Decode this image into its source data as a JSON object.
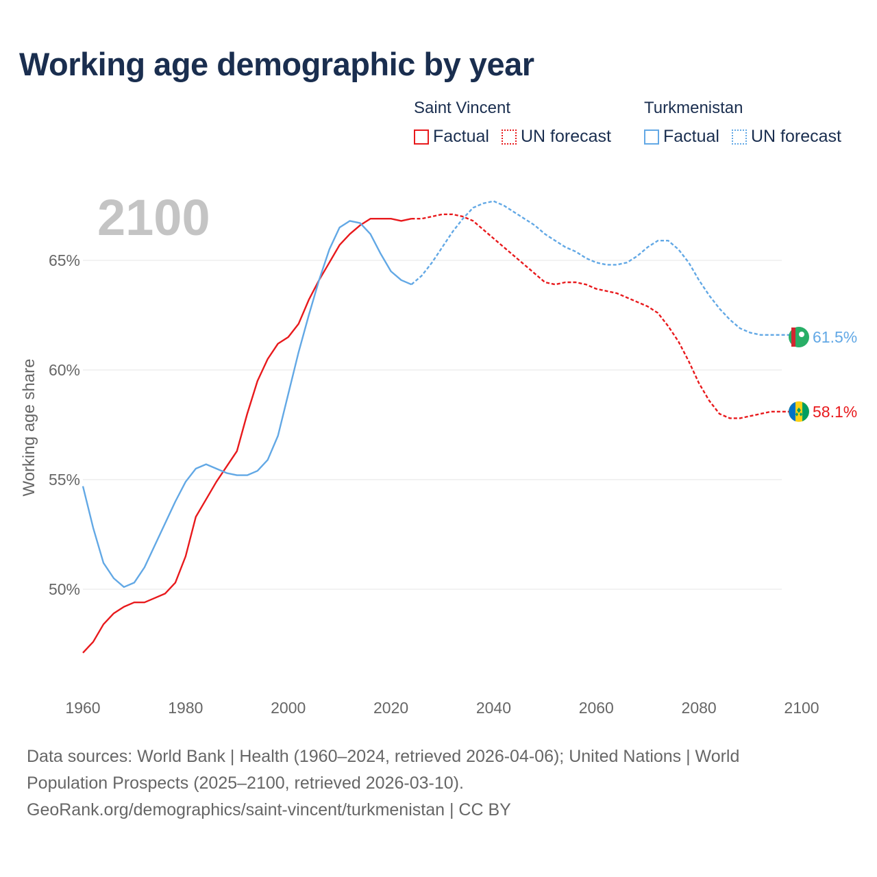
{
  "title": "Working age demographic by year",
  "legend": {
    "groups": [
      {
        "name": "Saint Vincent",
        "color": "#e8191c",
        "factual_label": "Factual",
        "forecast_label": "UN forecast"
      },
      {
        "name": "Turkmenistan",
        "color": "#62a8e5",
        "factual_label": "Factual",
        "forecast_label": "UN forecast"
      }
    ]
  },
  "footer": {
    "line1": "Data sources: World Bank | Health (1960–2024, retrieved 2026-04-06); United Nations | World",
    "line2": "Population Prospects (2025–2100, retrieved 2026-03-10).",
    "line3": "GeoRank.org/demographics/saint-vincent/turkmenistan | CC BY"
  },
  "colors": {
    "grid": "#e6e6e6",
    "tick": "#666666",
    "year_watermark": "#c4c4c4"
  },
  "chart_data": {
    "type": "line",
    "year_label": "2100",
    "ylabel": "Working age share",
    "xlim": [
      1960,
      2100
    ],
    "ylim": [
      45.5,
      68.5
    ],
    "xticks": [
      1960,
      1980,
      2000,
      2020,
      2040,
      2060,
      2080,
      2100
    ],
    "xtick_labels": [
      "1960",
      "1980",
      "2000",
      "2020",
      "2040",
      "2060",
      "2080",
      "2100"
    ],
    "yticks": [
      50,
      55,
      60,
      65
    ],
    "ytick_labels": [
      "50%",
      "55%",
      "60%",
      "65%"
    ],
    "forecast_start": 2024,
    "series": [
      {
        "name": "Saint Vincent",
        "color": "#e8191c",
        "end_label": "58.1%",
        "flag_icon": "saint-vincent-flag-icon",
        "x": [
          1960,
          1962,
          1964,
          1966,
          1968,
          1970,
          1972,
          1974,
          1976,
          1978,
          1980,
          1982,
          1984,
          1986,
          1988,
          1990,
          1992,
          1994,
          1996,
          1998,
          2000,
          2002,
          2004,
          2006,
          2008,
          2010,
          2012,
          2014,
          2016,
          2018,
          2020,
          2022,
          2024,
          2026,
          2028,
          2030,
          2032,
          2034,
          2036,
          2038,
          2040,
          2042,
          2044,
          2046,
          2048,
          2050,
          2052,
          2054,
          2056,
          2058,
          2060,
          2062,
          2064,
          2066,
          2068,
          2070,
          2072,
          2074,
          2076,
          2078,
          2080,
          2082,
          2084,
          2086,
          2088,
          2090,
          2092,
          2094,
          2096,
          2098,
          2100
        ],
        "values": [
          47.1,
          47.6,
          48.4,
          48.9,
          49.2,
          49.4,
          49.4,
          49.6,
          49.8,
          50.3,
          51.5,
          53.3,
          54.1,
          54.9,
          55.6,
          56.3,
          58.0,
          59.5,
          60.5,
          61.2,
          61.5,
          62.1,
          63.2,
          64.1,
          64.9,
          65.7,
          66.2,
          66.6,
          66.9,
          66.9,
          66.9,
          66.8,
          66.9,
          66.9,
          67.0,
          67.1,
          67.1,
          67.0,
          66.8,
          66.4,
          66.0,
          65.6,
          65.2,
          64.8,
          64.4,
          64.0,
          63.9,
          64.0,
          64.0,
          63.9,
          63.7,
          63.6,
          63.5,
          63.3,
          63.1,
          62.9,
          62.6,
          62.0,
          61.3,
          60.4,
          59.4,
          58.6,
          58.0,
          57.8,
          57.8,
          57.9,
          58.0,
          58.1,
          58.1,
          58.1,
          58.1
        ]
      },
      {
        "name": "Turkmenistan",
        "color": "#62a8e5",
        "end_label": "61.5%",
        "flag_icon": "turkmenistan-flag-icon",
        "x": [
          1960,
          1962,
          1964,
          1966,
          1968,
          1970,
          1972,
          1974,
          1976,
          1978,
          1980,
          1982,
          1984,
          1986,
          1988,
          1990,
          1992,
          1994,
          1996,
          1998,
          2000,
          2002,
          2004,
          2006,
          2008,
          2010,
          2012,
          2014,
          2016,
          2018,
          2020,
          2022,
          2024,
          2026,
          2028,
          2030,
          2032,
          2034,
          2036,
          2038,
          2040,
          2042,
          2044,
          2046,
          2048,
          2050,
          2052,
          2054,
          2056,
          2058,
          2060,
          2062,
          2064,
          2066,
          2068,
          2070,
          2072,
          2074,
          2076,
          2078,
          2080,
          2082,
          2084,
          2086,
          2088,
          2090,
          2092,
          2094,
          2096,
          2098,
          2100
        ],
        "values": [
          54.7,
          52.8,
          51.2,
          50.5,
          50.1,
          50.3,
          51.0,
          52.0,
          53.0,
          54.0,
          54.9,
          55.5,
          55.7,
          55.5,
          55.3,
          55.2,
          55.2,
          55.4,
          55.9,
          57.0,
          58.9,
          60.8,
          62.5,
          64.1,
          65.5,
          66.5,
          66.8,
          66.7,
          66.2,
          65.3,
          64.5,
          64.1,
          63.9,
          64.3,
          64.9,
          65.6,
          66.3,
          66.9,
          67.4,
          67.6,
          67.7,
          67.5,
          67.2,
          66.9,
          66.6,
          66.2,
          65.9,
          65.6,
          65.4,
          65.1,
          64.9,
          64.8,
          64.8,
          64.9,
          65.2,
          65.6,
          65.9,
          65.9,
          65.5,
          64.9,
          64.1,
          63.4,
          62.8,
          62.3,
          61.9,
          61.7,
          61.6,
          61.6,
          61.6,
          61.6,
          61.5
        ]
      }
    ]
  }
}
